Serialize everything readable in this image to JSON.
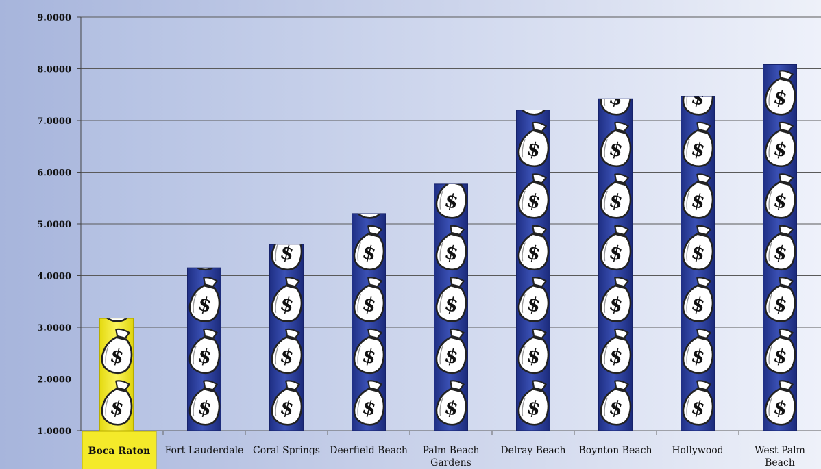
{
  "chart_data": {
    "type": "bar",
    "categories": [
      "Boca Raton",
      "Fort Lauderdale",
      "Coral Springs",
      "Deerfield Beach",
      "Palm Beach Gardens",
      "Delray Beach",
      "Boynton Beach",
      "Hollywood",
      "West Palm Beach"
    ],
    "category_lines": [
      [
        "Boca Raton"
      ],
      [
        "Fort Lauderdale"
      ],
      [
        "Coral Springs"
      ],
      [
        "Deerfield Beach"
      ],
      [
        "Palm Beach",
        "Gardens"
      ],
      [
        "Delray Beach"
      ],
      [
        "Boynton Beach"
      ],
      [
        "Hollywood"
      ],
      [
        "West Palm",
        "Beach"
      ]
    ],
    "values": [
      3.17,
      4.15,
      4.6,
      5.2,
      5.77,
      7.2,
      7.42,
      7.47,
      8.08
    ],
    "ylim": [
      1.0,
      9.0
    ],
    "yticks": [
      1,
      2,
      3,
      4,
      5,
      6,
      7,
      8,
      9
    ],
    "ytick_labels": [
      "1.0000",
      "2.0000",
      "3.0000",
      "4.0000",
      "5.0000",
      "6.0000",
      "7.0000",
      "8.0000",
      "9.0000"
    ],
    "grid": true,
    "highlight_index": 0,
    "bar_icon": "money-bag-icon",
    "icon_unit": 1.0,
    "colors": {
      "bar": "#2c3f9a",
      "highlight": "#f4ea2a",
      "grid": "#5a5a5a",
      "bag_fill": "#ffffff",
      "bag_stroke": "#222222"
    },
    "title": "",
    "xlabel": "",
    "ylabel": ""
  }
}
